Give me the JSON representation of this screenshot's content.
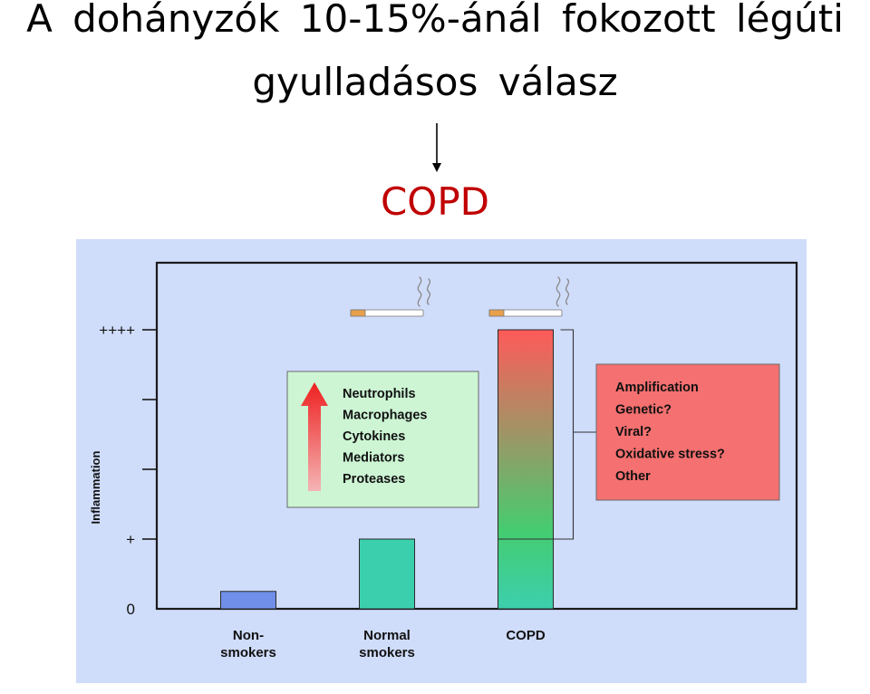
{
  "heading": {
    "line1": "A dohányzók 10-15%-ánál fokozott légúti",
    "line2": "gyulladásos válasz",
    "conclusion": "COPD"
  },
  "colors": {
    "conclusion": "#c00000",
    "panel_background": "#cfdcfa",
    "nonsmoker_bar": "#6f8fe8",
    "normal_smoker_bar": "#3ccfae",
    "copd_bar_top": "#ff5a5a",
    "copd_bar_mid": "#45cc70",
    "copd_bar_bottom": "#3ccfae",
    "mediator_box": "#cdf5d4",
    "factor_box": "#f57070",
    "up_arrow": "#ee2020"
  },
  "icons": {
    "cigarette": "cigarette-icon",
    "smoke": "smoke-icon",
    "up_arrow": "up-arrow-icon"
  },
  "chart_data": {
    "type": "bar",
    "categories": [
      [
        "Non-",
        "smokers"
      ],
      [
        "Normal",
        "smokers"
      ],
      [
        "COPD"
      ]
    ],
    "values": [
      0.25,
      1,
      4
    ],
    "ylabel": "Inflammation",
    "ylim": [
      0,
      4
    ],
    "yticks": [
      {
        "value": 0,
        "label": "0"
      },
      {
        "value": 1,
        "label": "+"
      },
      {
        "value": 2,
        "label": ""
      },
      {
        "value": 3,
        "label": ""
      },
      {
        "value": 4,
        "label": "++++"
      }
    ],
    "smoking": [
      false,
      true,
      true
    ],
    "copd_baseline": 1,
    "mediators": [
      "Neutrophils",
      "Macrophages",
      "Cytokines",
      "Mediators",
      "Proteases"
    ],
    "copd_factors": [
      "Amplification",
      "Genetic?",
      "Viral?",
      "Oxidative stress?",
      "Other"
    ]
  }
}
